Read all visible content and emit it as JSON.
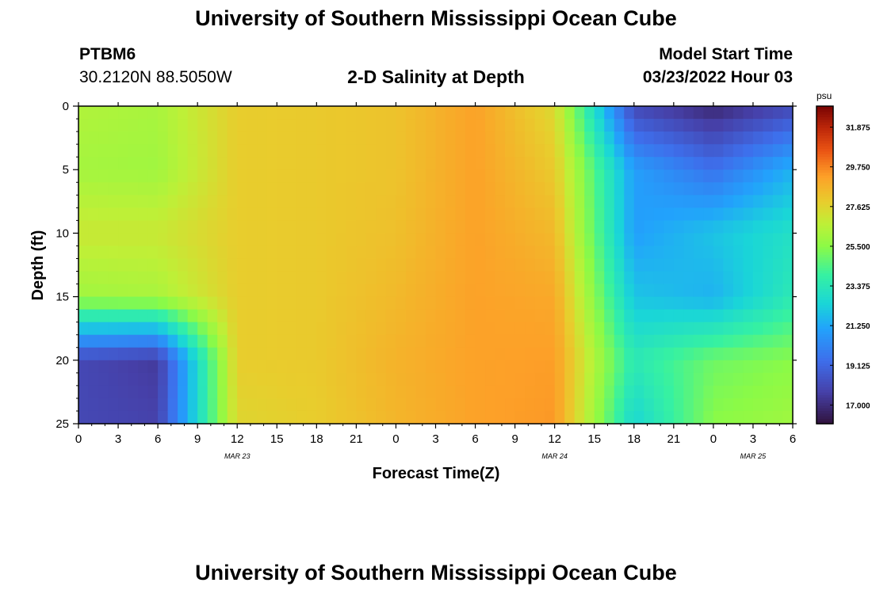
{
  "header": {
    "title": "University of Southern Mississippi Ocean Cube",
    "station_id": "PTBM6",
    "station_coords": "30.2120N  88.5050W",
    "plot_title": "2-D Salinity at Depth",
    "model_start_label": "Model Start Time",
    "model_start_value": "03/23/2022 Hour 03"
  },
  "footer": {
    "title": "University of Southern Mississippi Ocean Cube"
  },
  "chart_data": {
    "type": "heatmap",
    "title": "2-D Salinity at Depth",
    "xlabel": "Forecast Time(Z)",
    "ylabel": "Depth (ft)",
    "x_tick_labels": [
      "0",
      "3",
      "6",
      "9",
      "12",
      "15",
      "18",
      "21",
      "0",
      "3",
      "6",
      "9",
      "12",
      "15",
      "18",
      "21",
      "0",
      "3",
      "6"
    ],
    "date_labels": [
      {
        "text": "MAR 23",
        "at_tick": 4
      },
      {
        "text": "MAR 24",
        "at_tick": 12
      },
      {
        "text": "MAR 25",
        "at_tick": 17
      }
    ],
    "y_tick_labels": [
      "0",
      "5",
      "10",
      "15",
      "20",
      "25"
    ],
    "ylim": [
      0,
      25
    ],
    "y_inverted": true,
    "colorbar": {
      "unit": "psu",
      "min": 16.0,
      "max": 33.0,
      "tick_labels": [
        "31.875",
        "29.750",
        "27.625",
        "25.500",
        "23.375",
        "21.250",
        "19.125",
        "17.000"
      ]
    },
    "grid": {
      "x_hours": [
        0,
        6,
        12,
        18,
        24,
        30,
        36,
        42,
        48,
        54
      ],
      "depth_ft": [
        0,
        5,
        10,
        15,
        20,
        25
      ],
      "salinity_psu": [
        [
          26.4,
          26.1,
          27.0,
          26.0,
          18.0,
          18.0
        ],
        [
          26.2,
          26.0,
          27.0,
          26.2,
          17.5,
          17.8
        ],
        [
          27.9,
          27.9,
          27.9,
          27.9,
          27.9,
          27.6
        ],
        [
          28.0,
          28.0,
          28.0,
          28.0,
          28.0,
          27.9
        ],
        [
          28.2,
          28.2,
          28.3,
          28.5,
          28.7,
          28.6
        ],
        [
          29.2,
          29.2,
          29.2,
          29.2,
          29.2,
          29.2
        ],
        [
          27.5,
          28.0,
          28.5,
          29.0,
          29.3,
          29.4
        ],
        [
          18.0,
          21.0,
          21.0,
          22.0,
          23.5,
          22.5
        ],
        [
          16.8,
          19.5,
          22.0,
          21.5,
          25.0,
          25.5
        ],
        [
          18.0,
          21.5,
          23.0,
          23.5,
          25.5,
          26.0
        ]
      ]
    }
  }
}
